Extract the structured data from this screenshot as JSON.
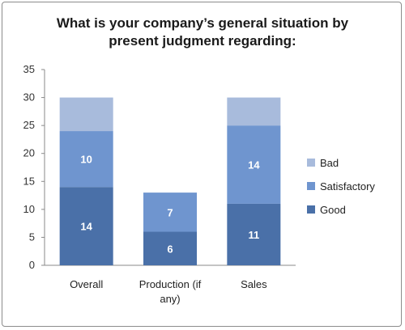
{
  "chart_data": {
    "type": "bar",
    "stacked": true,
    "title_lines": [
      "What is your company’s general situation by",
      "present judgment regarding:"
    ],
    "categories": [
      [
        "Overall"
      ],
      [
        "Production (if",
        "any)"
      ],
      [
        "Sales"
      ]
    ],
    "series": [
      {
        "name": "Good",
        "values": [
          14,
          6,
          11
        ],
        "color": "#4a70a8",
        "labels": [
          "14",
          "6",
          "11"
        ]
      },
      {
        "name": "Satisfactory",
        "values": [
          10,
          7,
          14
        ],
        "color": "#6f95cf",
        "labels": [
          "10",
          "7",
          "14"
        ]
      },
      {
        "name": "Bad",
        "values": [
          6,
          0,
          5
        ],
        "color": "#a8bbdc",
        "labels": [
          "",
          "",
          ""
        ]
      }
    ],
    "ylim": [
      0,
      35
    ],
    "yticks": [
      0,
      5,
      10,
      15,
      20,
      25,
      30,
      35
    ],
    "legend_order": [
      "Bad",
      "Satisfactory",
      "Good"
    ],
    "legend_position": "right",
    "grid": false
  }
}
